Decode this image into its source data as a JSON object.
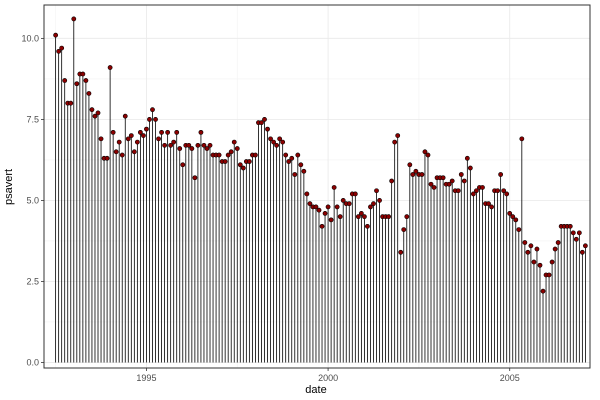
{
  "chart_data": {
    "type": "lollipop",
    "xlabel": "date",
    "ylabel": "psavert",
    "x_range_years": [
      1992.18,
      2007.21
    ],
    "ylim": [
      -0.17,
      11.03
    ],
    "y_ticks": [
      0.0,
      2.5,
      5.0,
      7.5,
      10.0
    ],
    "y_tick_labels": [
      "0.0",
      "2.5",
      "5.0",
      "7.5",
      "10.0"
    ],
    "x_ticks": [
      1995,
      2000,
      2005
    ],
    "x_tick_labels": [
      "1995",
      "2000",
      "2005"
    ],
    "grid": true,
    "stem_color": "#000000",
    "point_color": "#8b0000",
    "baseline": 0,
    "x_start": "1992-07",
    "x_step": "1 month",
    "values": [
      10.1,
      9.6,
      9.7,
      8.7,
      8.0,
      8.0,
      10.6,
      8.6,
      8.9,
      8.9,
      8.7,
      8.3,
      7.8,
      7.6,
      7.7,
      6.9,
      6.3,
      6.3,
      9.1,
      7.1,
      6.5,
      6.8,
      6.4,
      7.6,
      6.9,
      7.0,
      6.5,
      6.8,
      7.1,
      7.0,
      7.2,
      7.5,
      7.8,
      7.5,
      6.9,
      7.1,
      6.7,
      7.1,
      6.7,
      6.8,
      7.1,
      6.6,
      6.1,
      6.7,
      6.7,
      6.6,
      5.7,
      6.7,
      7.1,
      6.7,
      6.6,
      6.7,
      6.4,
      6.4,
      6.4,
      6.2,
      6.2,
      6.4,
      6.5,
      6.8,
      6.6,
      6.1,
      6.0,
      6.2,
      6.2,
      6.4,
      6.4,
      7.4,
      7.4,
      7.5,
      7.2,
      6.9,
      6.8,
      6.7,
      6.9,
      6.8,
      6.4,
      6.2,
      6.3,
      5.8,
      6.4,
      6.1,
      5.9,
      5.2,
      4.9,
      4.8,
      4.8,
      4.7,
      4.2,
      4.6,
      4.8,
      4.4,
      5.4,
      4.8,
      4.5,
      5.0,
      4.9,
      4.9,
      5.2,
      5.2,
      4.5,
      4.6,
      4.5,
      4.2,
      4.8,
      4.9,
      5.3,
      5.0,
      4.5,
      4.5,
      4.5,
      5.6,
      6.8,
      7.0,
      3.4,
      4.1,
      4.5,
      6.1,
      5.8,
      5.9,
      5.8,
      5.8,
      6.5,
      6.4,
      5.5,
      5.4,
      5.7,
      5.7,
      5.7,
      5.5,
      5.5,
      5.6,
      5.3,
      5.3,
      5.8,
      5.6,
      6.3,
      6.0,
      5.2,
      5.3,
      5.4,
      5.4,
      4.9,
      4.9,
      4.8,
      5.3,
      5.3,
      5.8,
      5.3,
      5.2,
      4.6,
      4.5,
      4.4,
      4.1,
      6.9,
      3.7,
      3.4,
      3.6,
      3.1,
      3.5,
      3.0,
      2.2,
      2.7,
      2.7,
      3.1,
      3.5,
      3.7,
      4.2,
      4.2,
      4.2,
      4.2,
      4.0,
      3.8,
      4.0,
      3.4,
      3.6
    ]
  }
}
